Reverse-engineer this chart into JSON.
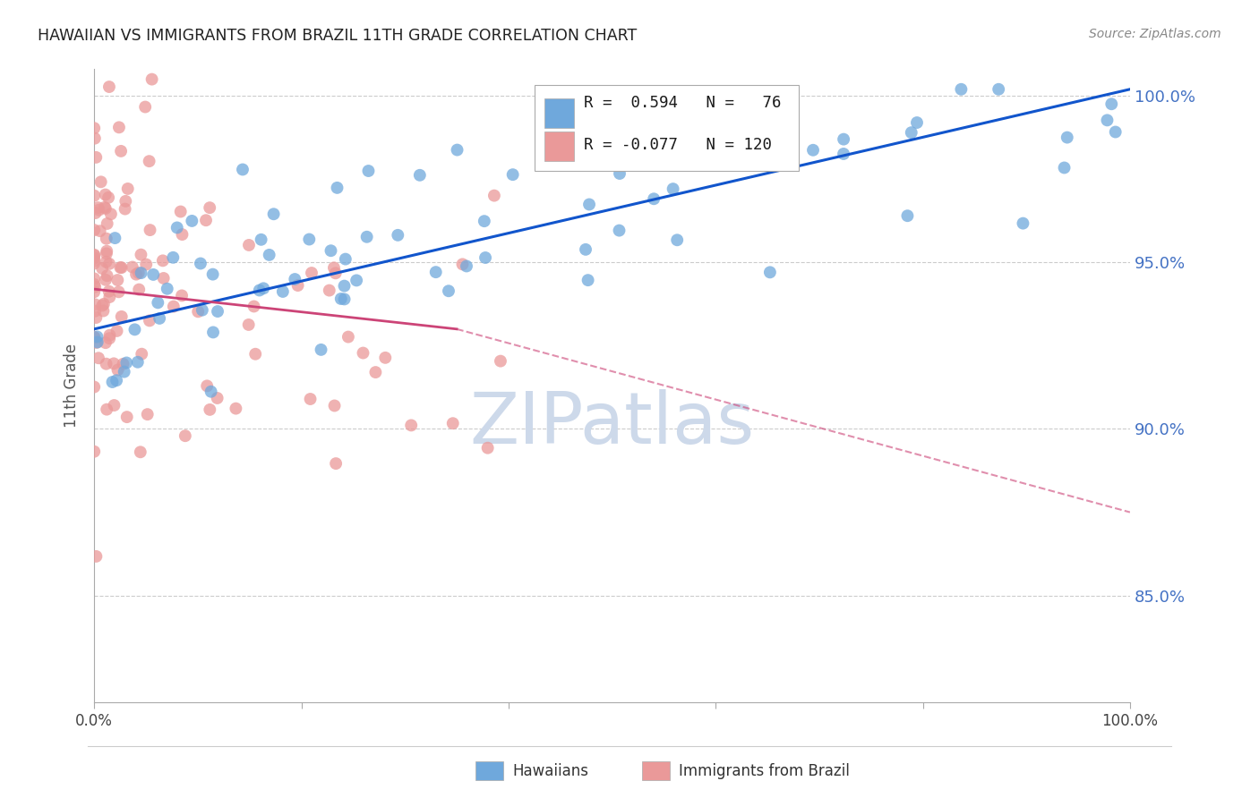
{
  "title": "HAWAIIAN VS IMMIGRANTS FROM BRAZIL 11TH GRADE CORRELATION CHART",
  "source": "Source: ZipAtlas.com",
  "ylabel": "11th Grade",
  "xlim": [
    0.0,
    1.0
  ],
  "ylim": [
    0.818,
    1.008
  ],
  "yticks": [
    0.85,
    0.9,
    0.95,
    1.0
  ],
  "ytick_labels": [
    "85.0%",
    "90.0%",
    "95.0%",
    "100.0%"
  ],
  "xtick_labels": [
    "0.0%",
    "",
    "",
    "",
    "",
    "100.0%"
  ],
  "blue_color": "#6fa8dc",
  "pink_color": "#ea9999",
  "blue_line_color": "#1155cc",
  "pink_line_color": "#cc4477",
  "watermark": "ZIPatlas",
  "background_color": "#ffffff",
  "grid_color": "#cccccc",
  "blue_R": 0.594,
  "blue_N": 76,
  "pink_R": -0.077,
  "pink_N": 120
}
